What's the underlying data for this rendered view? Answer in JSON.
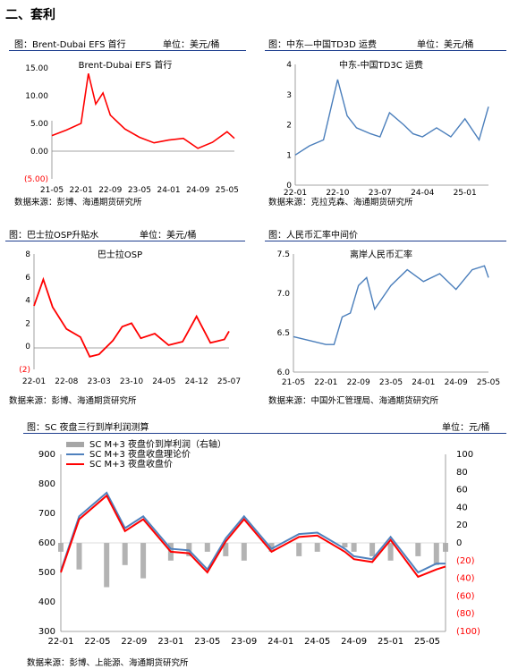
{
  "section": {
    "title": "二、套利"
  },
  "panels": [
    {
      "fig_label": "图：Brent-Dubai EFS 首行",
      "unit": "单位：美元/桶",
      "source": "数据来源：彭博、海通期货研究所"
    },
    {
      "fig_label": "图：中东—中国TD3D 运费",
      "unit": "单位：美元/桶",
      "source": "数据来源：克拉克森、海通期货研究所"
    },
    {
      "fig_label": "图：巴士拉OSP升贴水",
      "unit": "单位：美元/桶",
      "source": "数据来源：彭博、海通期货研究所"
    },
    {
      "fig_label": "图：人民币汇率中间价",
      "unit": "",
      "source": "数据来源：中国外汇管理局、海通期货研究所"
    },
    {
      "fig_label": "图：SC 夜盘三行到岸利润测算",
      "unit": "单位：元/桶",
      "source": "数据来源：彭博、上能源、海通期货研究所"
    }
  ],
  "chart_data": [
    {
      "type": "line",
      "title": "Brent-Dubai EFS 首行",
      "color": "#ff0000",
      "y_ticks": [
        "15.00",
        "10.00",
        "5.00",
        "0.00",
        "(5.00)"
      ],
      "ylim": [
        -5,
        15
      ],
      "x_ticks": [
        "21-05",
        "22-01",
        "22-09",
        "23-05",
        "24-01",
        "24-09",
        "25-05"
      ],
      "x": [
        "21-05",
        "21-09",
        "22-01",
        "22-03",
        "22-05",
        "22-07",
        "22-09",
        "23-01",
        "23-05",
        "23-09",
        "24-01",
        "24-05",
        "24-09",
        "25-01",
        "25-05",
        "25-07"
      ],
      "y": [
        2.8,
        3.8,
        5.0,
        14.0,
        8.5,
        10.5,
        6.5,
        4.0,
        2.5,
        1.5,
        2.0,
        2.3,
        0.5,
        1.6,
        3.5,
        2.3
      ]
    },
    {
      "type": "line",
      "title": "中东-中国TD3C 运费",
      "color": "#4a7ebb",
      "y_ticks": [
        "4",
        "3",
        "2",
        "1",
        "0"
      ],
      "ylim": [
        0,
        4
      ],
      "x_ticks": [
        "22-01",
        "22-10",
        "23-07",
        "24-04",
        "25-01"
      ],
      "x": [
        "22-01",
        "22-04",
        "22-07",
        "22-10",
        "22-12",
        "23-02",
        "23-05",
        "23-07",
        "23-09",
        "23-12",
        "24-02",
        "24-04",
        "24-07",
        "24-10",
        "25-01",
        "25-04",
        "25-06"
      ],
      "y": [
        1.0,
        1.3,
        1.5,
        3.5,
        2.3,
        1.9,
        1.7,
        1.6,
        2.4,
        2.0,
        1.7,
        1.6,
        1.9,
        1.6,
        2.2,
        1.5,
        2.6
      ]
    },
    {
      "type": "line",
      "title": "巴士拉OSP",
      "color": "#ff0000",
      "y_ticks": [
        "8",
        "6",
        "4",
        "2",
        "0",
        "(2)"
      ],
      "ylim": [
        -2,
        8
      ],
      "x_ticks": [
        "22-01",
        "22-08",
        "23-03",
        "23-10",
        "24-05",
        "24-12",
        "25-07"
      ],
      "x": [
        "22-01",
        "22-03",
        "22-05",
        "22-08",
        "22-11",
        "23-01",
        "23-03",
        "23-06",
        "23-08",
        "23-10",
        "23-12",
        "24-03",
        "24-06",
        "24-09",
        "24-12",
        "25-03",
        "25-06",
        "25-07"
      ],
      "y": [
        3.5,
        5.8,
        3.4,
        1.5,
        0.8,
        -0.9,
        -0.7,
        0.5,
        1.7,
        2.0,
        0.7,
        1.1,
        0.1,
        0.4,
        2.6,
        0.3,
        0.6,
        1.3
      ]
    },
    {
      "type": "line",
      "title": "离岸人民币汇率",
      "color": "#4a7ebb",
      "y_ticks": [
        "7.5",
        "7.0",
        "6.5",
        "6.0"
      ],
      "ylim": [
        6.0,
        7.5
      ],
      "x_ticks": [
        "21-05",
        "22-01",
        "22-09",
        "23-05",
        "24-01",
        "24-09",
        "25-05"
      ],
      "x": [
        "21-05",
        "21-09",
        "22-01",
        "22-03",
        "22-05",
        "22-07",
        "22-09",
        "22-11",
        "23-01",
        "23-05",
        "23-09",
        "24-01",
        "24-05",
        "24-09",
        "25-01",
        "25-04",
        "25-05"
      ],
      "y": [
        6.45,
        6.4,
        6.35,
        6.35,
        6.7,
        6.75,
        7.1,
        7.2,
        6.8,
        7.1,
        7.3,
        7.15,
        7.25,
        7.05,
        7.3,
        7.35,
        7.2
      ]
    },
    {
      "type": "line",
      "title": "",
      "legend": [
        "SC M+3 夜盘价到岸利润（右轴）",
        "SC M+3 夜盘收盘理论价",
        "SC M+3 夜盘收盘价"
      ],
      "legend_colors": [
        "#a6a6a6",
        "#4f81bd",
        "#ff0000"
      ],
      "y_ticks_left": [
        "900",
        "800",
        "700",
        "600",
        "500",
        "400",
        "300"
      ],
      "ylim_left": [
        300,
        900
      ],
      "y_ticks_right": [
        "100",
        "80",
        "60",
        "40",
        "20",
        "0",
        "(20)",
        "(40)",
        "(60)",
        "(80)",
        "(100)"
      ],
      "ylim_right": [
        -100,
        100
      ],
      "x_ticks": [
        "22-01",
        "22-05",
        "22-09",
        "23-01",
        "23-05",
        "23-09",
        "24-01",
        "24-05",
        "24-09",
        "25-01",
        "25-05"
      ],
      "x": [
        "22-01",
        "22-03",
        "22-06",
        "22-08",
        "22-10",
        "23-01",
        "23-03",
        "23-05",
        "23-07",
        "23-09",
        "23-12",
        "24-03",
        "24-05",
        "24-08",
        "24-09",
        "24-11",
        "25-01",
        "25-04",
        "25-06",
        "25-07"
      ],
      "series": [
        {
          "name": "SC M+3 夜盘收盘理论价",
          "values": [
            505,
            690,
            770,
            650,
            690,
            580,
            575,
            510,
            615,
            690,
            580,
            630,
            635,
            580,
            555,
            545,
            620,
            500,
            530,
            530
          ]
        },
        {
          "name": "SC M+3 夜盘收盘价",
          "values": [
            500,
            680,
            760,
            640,
            680,
            570,
            565,
            500,
            605,
            680,
            570,
            620,
            625,
            570,
            545,
            535,
            610,
            485,
            510,
            520
          ]
        },
        {
          "name": "SC M+3 夜盘价到岸利润（右轴）",
          "values": [
            -10,
            -30,
            -50,
            -25,
            -40,
            -20,
            -15,
            -10,
            -15,
            -20,
            -10,
            -15,
            -10,
            -5,
            -10,
            -15,
            -20,
            -15,
            -25,
            -10
          ]
        }
      ]
    }
  ]
}
